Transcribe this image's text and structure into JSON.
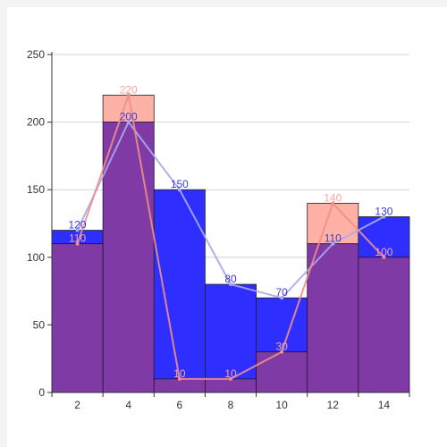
{
  "chart_data": {
    "type": "bar",
    "title": "",
    "xlabel": "",
    "ylabel": "",
    "categories": [
      "2",
      "4",
      "6",
      "8",
      "10",
      "12",
      "14"
    ],
    "ylim": [
      0,
      250
    ],
    "yticks": [
      "0",
      "50",
      "100",
      "150",
      "200",
      "250"
    ],
    "grid": true,
    "legend": "none",
    "series": [
      {
        "values": [
          120,
          200,
          150,
          80,
          70,
          110,
          130
        ],
        "bar_color": "#2e2eff",
        "line_color": "#a8a8f0",
        "label_color": "#3b3bdb"
      },
      {
        "values": [
          110,
          220,
          10,
          10,
          30,
          140,
          100
        ],
        "bar_color": "#ffb1a6",
        "line_color": "#f08f86",
        "label_color": "#f7a79d"
      }
    ],
    "overlap_color": "#7f3aa5"
  }
}
